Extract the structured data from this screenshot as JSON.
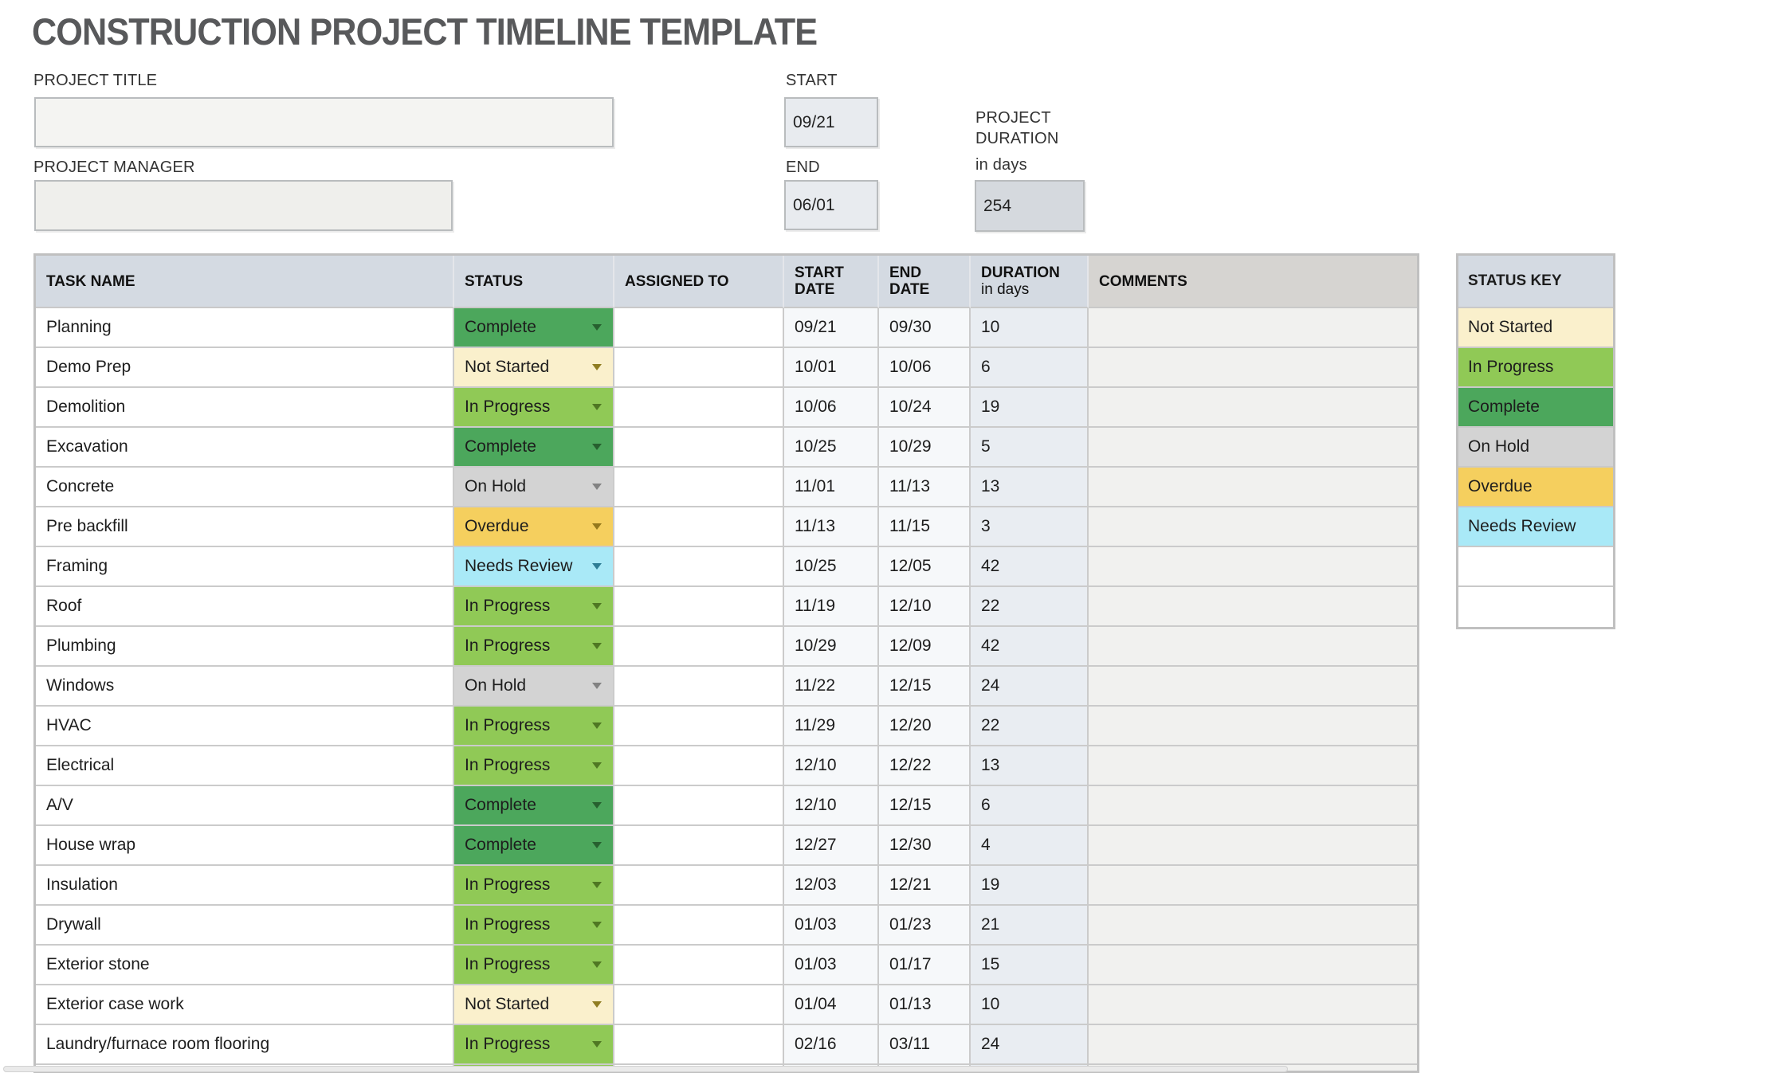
{
  "page_title": "CONSTRUCTION PROJECT TIMELINE TEMPLATE",
  "form": {
    "project_title_label": "PROJECT TITLE",
    "project_title_value": "",
    "project_manager_label": "PROJECT MANAGER",
    "project_manager_value": "",
    "start_label": "START",
    "start_value": "09/21",
    "end_label": "END",
    "end_value": "06/01",
    "duration_label_line1": "PROJECT",
    "duration_label_line2": "DURATION",
    "duration_sublabel": "in days",
    "duration_value": "254"
  },
  "table": {
    "headers": {
      "task": "TASK NAME",
      "status": "STATUS",
      "assigned": "ASSIGNED TO",
      "start": "START DATE",
      "end": "END DATE",
      "duration_bold": "DURATION",
      "duration_rest": "in days",
      "comments": "COMMENTS"
    },
    "rows": [
      {
        "task": "Planning",
        "status": "Complete",
        "assigned": "",
        "start": "09/21",
        "end": "09/30",
        "duration": "10",
        "comments": ""
      },
      {
        "task": "Demo Prep",
        "status": "Not Started",
        "assigned": "",
        "start": "10/01",
        "end": "10/06",
        "duration": "6",
        "comments": ""
      },
      {
        "task": "Demolition",
        "status": "In Progress",
        "assigned": "",
        "start": "10/06",
        "end": "10/24",
        "duration": "19",
        "comments": ""
      },
      {
        "task": "Excavation",
        "status": "Complete",
        "assigned": "",
        "start": "10/25",
        "end": "10/29",
        "duration": "5",
        "comments": ""
      },
      {
        "task": "Concrete",
        "status": "On Hold",
        "assigned": "",
        "start": "11/01",
        "end": "11/13",
        "duration": "13",
        "comments": ""
      },
      {
        "task": "Pre backfill",
        "status": "Overdue",
        "assigned": "",
        "start": "11/13",
        "end": "11/15",
        "duration": "3",
        "comments": ""
      },
      {
        "task": "Framing",
        "status": "Needs Review",
        "assigned": "",
        "start": "10/25",
        "end": "12/05",
        "duration": "42",
        "comments": ""
      },
      {
        "task": "Roof",
        "status": "In Progress",
        "assigned": "",
        "start": "11/19",
        "end": "12/10",
        "duration": "22",
        "comments": ""
      },
      {
        "task": "Plumbing",
        "status": "In Progress",
        "assigned": "",
        "start": "10/29",
        "end": "12/09",
        "duration": "42",
        "comments": ""
      },
      {
        "task": "Windows",
        "status": "On Hold",
        "assigned": "",
        "start": "11/22",
        "end": "12/15",
        "duration": "24",
        "comments": ""
      },
      {
        "task": "HVAC",
        "status": "In Progress",
        "assigned": "",
        "start": "11/29",
        "end": "12/20",
        "duration": "22",
        "comments": ""
      },
      {
        "task": "Electrical",
        "status": "In Progress",
        "assigned": "",
        "start": "12/10",
        "end": "12/22",
        "duration": "13",
        "comments": ""
      },
      {
        "task": "A/V",
        "status": "Complete",
        "assigned": "",
        "start": "12/10",
        "end": "12/15",
        "duration": "6",
        "comments": ""
      },
      {
        "task": "House wrap",
        "status": "Complete",
        "assigned": "",
        "start": "12/27",
        "end": "12/30",
        "duration": "4",
        "comments": ""
      },
      {
        "task": "Insulation",
        "status": "In Progress",
        "assigned": "",
        "start": "12/03",
        "end": "12/21",
        "duration": "19",
        "comments": ""
      },
      {
        "task": "Drywall",
        "status": "In Progress",
        "assigned": "",
        "start": "01/03",
        "end": "01/23",
        "duration": "21",
        "comments": ""
      },
      {
        "task": "Exterior stone",
        "status": "In Progress",
        "assigned": "",
        "start": "01/03",
        "end": "01/17",
        "duration": "15",
        "comments": ""
      },
      {
        "task": "Exterior case work",
        "status": "Not Started",
        "assigned": "",
        "start": "01/04",
        "end": "01/13",
        "duration": "10",
        "comments": ""
      },
      {
        "task": "Laundry/furnace room flooring",
        "status": "In Progress",
        "assigned": "",
        "start": "02/16",
        "end": "03/11",
        "duration": "24",
        "comments": ""
      }
    ],
    "partial_row_status": "In Progress"
  },
  "status_key": {
    "title": "STATUS KEY",
    "items": [
      {
        "label": "Not Started"
      },
      {
        "label": "In Progress"
      },
      {
        "label": "Complete"
      },
      {
        "label": "On Hold"
      },
      {
        "label": "Overdue"
      },
      {
        "label": "Needs Review"
      },
      {
        "label": ""
      },
      {
        "label": ""
      }
    ]
  },
  "status_colors": {
    "Complete": {
      "bg": "#4ca75c",
      "arrow": "#27602f"
    },
    "In Progress": {
      "bg": "#90c956",
      "arrow": "#4f7723"
    },
    "Not Started": {
      "bg": "#faf0cc",
      "arrow": "#8f7d22"
    },
    "On Hold": {
      "bg": "#d3d3d3",
      "arrow": "#828282"
    },
    "Overdue": {
      "bg": "#f5cf5e",
      "arrow": "#94781c"
    },
    "Needs Review": {
      "bg": "#a9e9f7",
      "arrow": "#2e7d95"
    }
  },
  "ui_colors": {
    "header_bg": "#d4dae2",
    "comments_header_bg": "#d6d4d1",
    "title_text": "#58595b",
    "grid_line": "#cbcbcb"
  }
}
